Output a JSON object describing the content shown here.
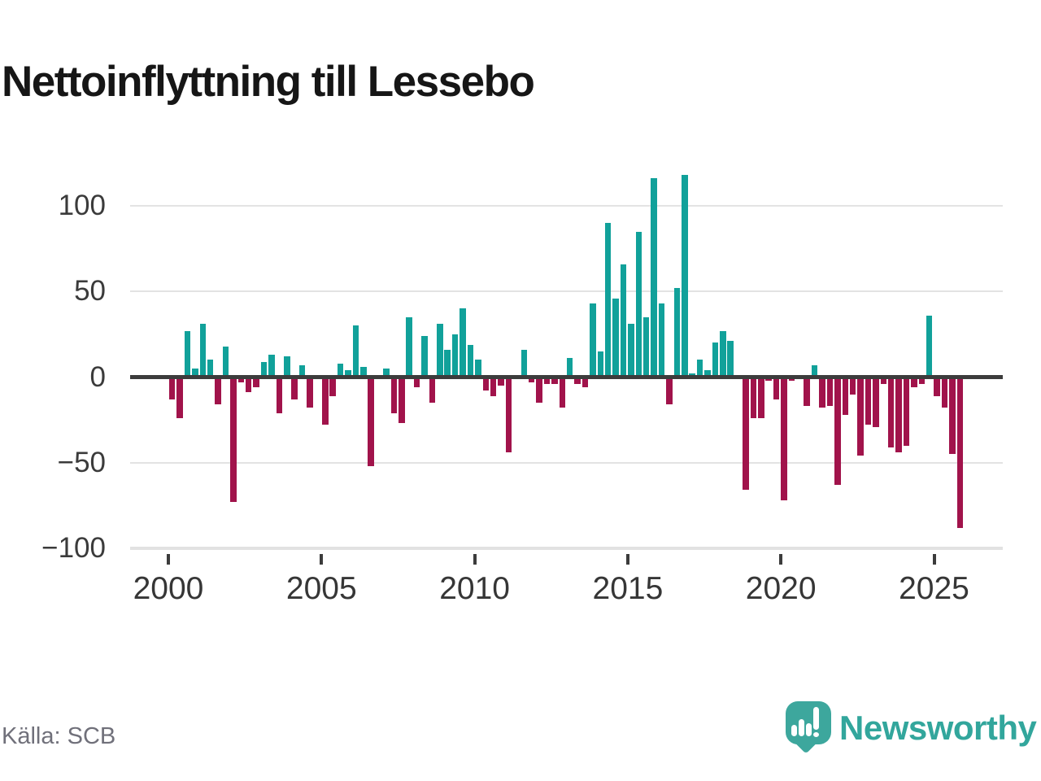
{
  "title": "Nettoinflyttning till Lessebo",
  "source": "Källa: SCB",
  "logo": {
    "text": "Newsworthy"
  },
  "colors": {
    "positive": "#11a19a",
    "negative": "#a1134b",
    "zero_line": "#3c3c3c",
    "gridline": "#e3e3e3",
    "axis_text": "#3b3b3b",
    "title_text": "#161616",
    "source_text": "#70707a",
    "logo_teal": "#3da79d",
    "logo_text_teal": "#32a69c"
  },
  "chart_data": {
    "type": "bar",
    "title": "Nettoinflyttning till Lessebo",
    "xlabel": "",
    "ylabel": "",
    "frequency": "quarterly",
    "ylim": [
      -100,
      120
    ],
    "grid": "horizontal",
    "y_ticks": [
      100,
      50,
      0,
      -50,
      -100
    ],
    "y_tick_labels": [
      "100",
      "50",
      "0",
      "−50",
      "−100"
    ],
    "x_ticks": [
      2000,
      2005,
      2010,
      2015,
      2020,
      2025
    ],
    "x_tick_labels": [
      "2000",
      "2005",
      "2010",
      "2015",
      "2020",
      "2025"
    ],
    "values_by_year": [
      {
        "year": 2000,
        "q": [
          -13,
          -24,
          27,
          5
        ]
      },
      {
        "year": 2001,
        "q": [
          31,
          10,
          -16,
          18
        ]
      },
      {
        "year": 2002,
        "q": [
          -73,
          -3,
          -9,
          -6
        ]
      },
      {
        "year": 2003,
        "q": [
          9,
          13,
          -21,
          12
        ]
      },
      {
        "year": 2004,
        "q": [
          -13,
          7,
          -18,
          0
        ]
      },
      {
        "year": 2005,
        "q": [
          -28,
          -11,
          8,
          4
        ]
      },
      {
        "year": 2006,
        "q": [
          30,
          6,
          -52,
          0
        ]
      },
      {
        "year": 2007,
        "q": [
          5,
          -21,
          -27,
          35
        ]
      },
      {
        "year": 2008,
        "q": [
          -6,
          24,
          -15,
          31
        ]
      },
      {
        "year": 2009,
        "q": [
          16,
          25,
          40,
          19
        ]
      },
      {
        "year": 2010,
        "q": [
          10,
          -8,
          -11,
          -5
        ]
      },
      {
        "year": 2011,
        "q": [
          -44,
          0,
          16,
          -3
        ]
      },
      {
        "year": 2012,
        "q": [
          -15,
          -4,
          -4,
          -18
        ]
      },
      {
        "year": 2013,
        "q": [
          11,
          -4,
          -6,
          43
        ]
      },
      {
        "year": 2014,
        "q": [
          15,
          90,
          46,
          66
        ]
      },
      {
        "year": 2015,
        "q": [
          31,
          85,
          35,
          116
        ]
      },
      {
        "year": 2016,
        "q": [
          43,
          -16,
          52,
          118
        ]
      },
      {
        "year": 2017,
        "q": [
          2,
          10,
          4,
          20
        ]
      },
      {
        "year": 2018,
        "q": [
          27,
          21,
          0,
          -66
        ]
      },
      {
        "year": 2019,
        "q": [
          -24,
          -24,
          -2,
          -13
        ]
      },
      {
        "year": 2020,
        "q": [
          -72,
          -2,
          0,
          -17
        ]
      },
      {
        "year": 2021,
        "q": [
          7,
          -18,
          -17,
          -63
        ]
      },
      {
        "year": 2022,
        "q": [
          -22,
          -10,
          -46,
          -28
        ]
      },
      {
        "year": 2023,
        "q": [
          -29,
          -4,
          -41,
          -44
        ]
      },
      {
        "year": 2024,
        "q": [
          -40,
          -6,
          -4,
          36
        ]
      },
      {
        "year": 2025,
        "q": [
          -11,
          -18,
          -45,
          -88
        ]
      }
    ]
  }
}
